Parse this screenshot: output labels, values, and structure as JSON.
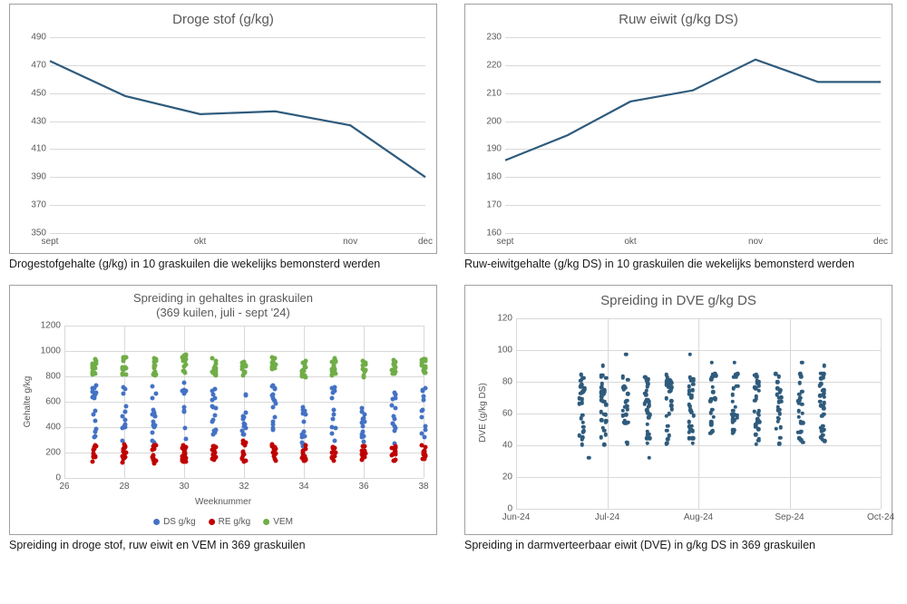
{
  "chart1": {
    "type": "line",
    "title": "Droge stof (g/kg)",
    "caption": "Drogestofgehalte (g/kg) in 10 graskuilen die wekelijks bemonsterd werden",
    "ylim": [
      350,
      490
    ],
    "ytick_step": 20,
    "xlabels": [
      "sept",
      "okt",
      "nov",
      "dec"
    ],
    "values": [
      473,
      448,
      435,
      437,
      427,
      390
    ],
    "line_color": "#2f5b7c",
    "line_width": 2.2,
    "grid_color": "#d9d9d9",
    "title_color": "#595959",
    "tick_fontsize": 10,
    "title_fontsize": 15,
    "background_color": "#ffffff"
  },
  "chart2": {
    "type": "line",
    "title": "Ruw eiwit (g/kg DS)",
    "caption": "Ruw-eiwitgehalte (g/kg DS) in 10 graskuilen die wekelijks bemonsterd werden",
    "ylim": [
      160,
      230
    ],
    "ytick_step": 10,
    "xlabels": [
      "sept",
      "okt",
      "nov",
      "dec"
    ],
    "values": [
      186,
      195,
      207,
      211,
      222,
      214,
      214
    ],
    "line_color": "#2f5b7c",
    "line_width": 2.2,
    "grid_color": "#d9d9d9",
    "title_color": "#595959",
    "tick_fontsize": 10,
    "title_fontsize": 15,
    "background_color": "#ffffff"
  },
  "chart3": {
    "type": "scatter",
    "title_line1": "Spreiding in gehaltes in graskuilen",
    "title_line2": "(369 kuilen, juli - sept '24)",
    "caption": "Spreiding in droge stof, ruw eiwit en VEM in 369 graskuilen",
    "xlim": [
      26,
      38
    ],
    "xtick_step": 2,
    "ylim": [
      0,
      1200
    ],
    "ytick_step": 200,
    "xlabel": "Weeknummer",
    "ylabel": "Gehalte g/kg",
    "grid_color": "#d9d9d9",
    "marker_size": 5,
    "legend": [
      {
        "label": "DS g/kg",
        "color": "#4472c4"
      },
      {
        "label": "RE g/kg",
        "color": "#c00000"
      },
      {
        "label": "VEM",
        "color": "#70ad47"
      }
    ],
    "series": {
      "DS": {
        "color": "#4472c4",
        "weeks": [
          27,
          28,
          29,
          30,
          31,
          32,
          33,
          34,
          35,
          36,
          37,
          38
        ],
        "ranges": [
          [
            300,
            750
          ],
          [
            260,
            720
          ],
          [
            260,
            740
          ],
          [
            260,
            780
          ],
          [
            280,
            740
          ],
          [
            260,
            750
          ],
          [
            300,
            740
          ],
          [
            240,
            560
          ],
          [
            260,
            720
          ],
          [
            260,
            560
          ],
          [
            240,
            690
          ],
          [
            260,
            720
          ]
        ]
      },
      "RE": {
        "color": "#c00000",
        "weeks": [
          27,
          28,
          29,
          30,
          31,
          32,
          33,
          34,
          35,
          36,
          37,
          38
        ],
        "ranges": [
          [
            120,
            260
          ],
          [
            120,
            260
          ],
          [
            110,
            270
          ],
          [
            120,
            260
          ],
          [
            130,
            250
          ],
          [
            120,
            290
          ],
          [
            130,
            270
          ],
          [
            120,
            260
          ],
          [
            130,
            250
          ],
          [
            130,
            260
          ],
          [
            120,
            250
          ],
          [
            130,
            260
          ]
        ]
      },
      "VEM": {
        "color": "#70ad47",
        "weeks": [
          27,
          28,
          29,
          30,
          31,
          32,
          33,
          34,
          35,
          36,
          37,
          38
        ],
        "ranges": [
          [
            800,
            950
          ],
          [
            810,
            950
          ],
          [
            800,
            950
          ],
          [
            820,
            970
          ],
          [
            800,
            950
          ],
          [
            800,
            940
          ],
          [
            820,
            950
          ],
          [
            790,
            920
          ],
          [
            800,
            950
          ],
          [
            790,
            920
          ],
          [
            810,
            930
          ],
          [
            820,
            950
          ]
        ]
      }
    },
    "title_fontsize": 13,
    "tick_fontsize": 10,
    "background_color": "#ffffff"
  },
  "chart4": {
    "type": "scatter",
    "title": "Spreiding in DVE g/kg DS",
    "caption": "Spreiding in darmverteerbaar eiwit (DVE) in g/kg DS in 369 graskuilen",
    "ylim": [
      0,
      120
    ],
    "ytick_step": 20,
    "xlabels": [
      "Jun-24",
      "Jul-24",
      "Aug-24",
      "Sep-24",
      "Oct-24"
    ],
    "ylabel": "DVE (g/kg DS)",
    "marker_color": "#2f5b7c",
    "marker_size": 4.5,
    "grid_color": "#d9d9d9",
    "x_cluster_range": [
      0.18,
      0.84
    ],
    "n_clusters": 12,
    "y_main_range": [
      40,
      85
    ],
    "y_outliers": [
      32,
      95,
      97,
      90,
      92
    ],
    "title_fontsize": 15,
    "tick_fontsize": 10,
    "background_color": "#ffffff"
  }
}
